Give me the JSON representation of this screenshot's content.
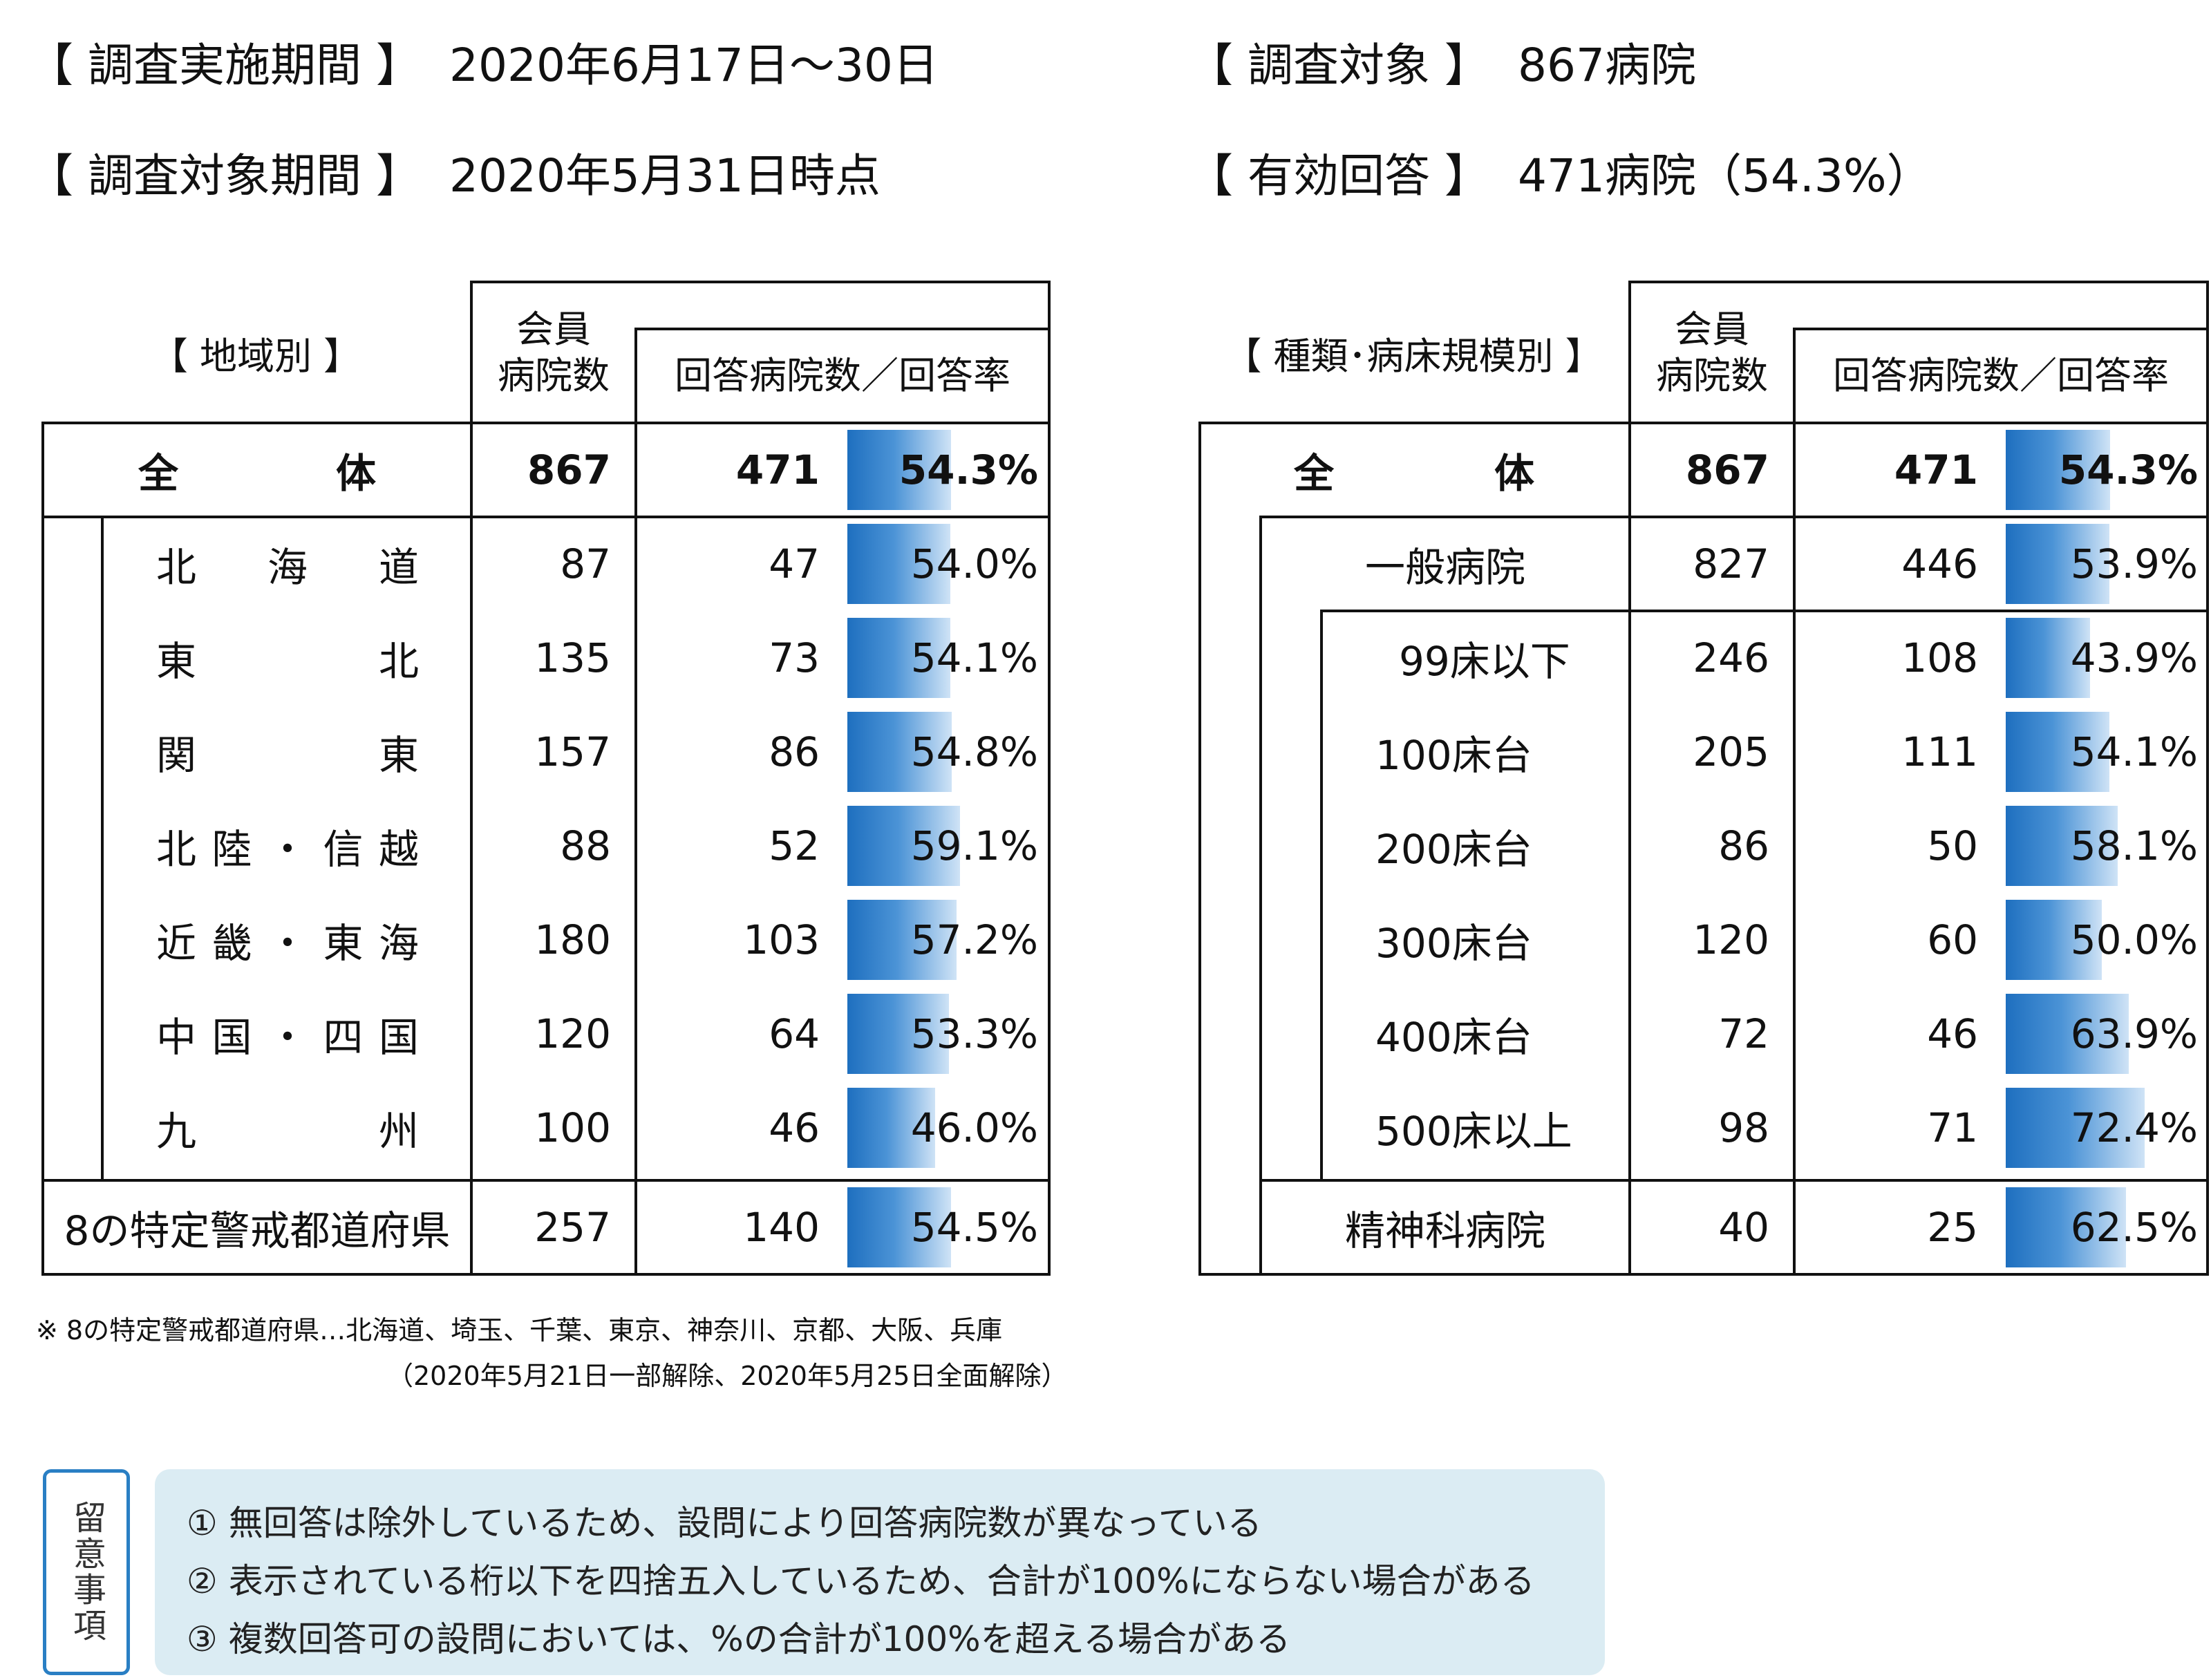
{
  "header": {
    "survey_period_label": "【 調査実施期間 】",
    "survey_period_value": "2020年6月17日～30日",
    "target_period_label": "【 調査対象期間 】",
    "target_period_value": "2020年5月31日時点",
    "target_label": "【 調査対象 】",
    "target_value": "867病院",
    "valid_label": "【 有効回答 】",
    "valid_value": "471病院（54.3%）"
  },
  "region_table": {
    "title": "【 地域別 】",
    "col_members": "会員\n病院数",
    "col_responses": "回答病院数／回答率",
    "total": {
      "label_a": "全",
      "label_b": "体",
      "members": "867",
      "responses": "471",
      "rate": "54.3%",
      "rate_value": 54.3
    },
    "rows": [
      {
        "chars": [
          "北",
          "海",
          "道"
        ],
        "members": "87",
        "responses": "47",
        "rate": "54.0%",
        "rate_value": 54.0
      },
      {
        "chars": [
          "東",
          "北"
        ],
        "members": "135",
        "responses": "73",
        "rate": "54.1%",
        "rate_value": 54.1
      },
      {
        "chars": [
          "関",
          "東"
        ],
        "members": "157",
        "responses": "86",
        "rate": "54.8%",
        "rate_value": 54.8
      },
      {
        "chars": [
          "北",
          "陸",
          "・",
          "信",
          "越"
        ],
        "members": "88",
        "responses": "52",
        "rate": "59.1%",
        "rate_value": 59.1
      },
      {
        "chars": [
          "近",
          "畿",
          "・",
          "東",
          "海"
        ],
        "members": "180",
        "responses": "103",
        "rate": "57.2%",
        "rate_value": 57.2
      },
      {
        "chars": [
          "中",
          "国",
          "・",
          "四",
          "国"
        ],
        "members": "120",
        "responses": "64",
        "rate": "53.3%",
        "rate_value": 53.3
      },
      {
        "chars": [
          "九",
          "州"
        ],
        "members": "100",
        "responses": "46",
        "rate": "46.0%",
        "rate_value": 46.0
      }
    ],
    "special": {
      "label": "8の特定警戒都道府県",
      "members": "257",
      "responses": "140",
      "rate": "54.5%",
      "rate_value": 54.5
    }
  },
  "type_table": {
    "title": "【 種類･病床規模別 】",
    "col_members": "会員\n病院数",
    "col_responses": "回答病院数／回答率",
    "total": {
      "label_a": "全",
      "label_b": "体",
      "members": "867",
      "responses": "471",
      "rate": "54.3%",
      "rate_value": 54.3
    },
    "general": {
      "label": "一般病院",
      "members": "827",
      "responses": "446",
      "rate": "53.9%",
      "rate_value": 53.9
    },
    "rows": [
      {
        "label": "99床以下",
        "members": "246",
        "responses": "108",
        "rate": "43.9%",
        "rate_value": 43.9
      },
      {
        "label": "100床台",
        "members": "205",
        "responses": "111",
        "rate": "54.1%",
        "rate_value": 54.1
      },
      {
        "label": "200床台",
        "members": "86",
        "responses": "50",
        "rate": "58.1%",
        "rate_value": 58.1
      },
      {
        "label": "300床台",
        "members": "120",
        "responses": "60",
        "rate": "50.0%",
        "rate_value": 50.0
      },
      {
        "label": "400床台",
        "members": "72",
        "responses": "46",
        "rate": "63.9%",
        "rate_value": 63.9
      },
      {
        "label": "500床以上",
        "members": "98",
        "responses": "71",
        "rate": "72.4%",
        "rate_value": 72.4
      }
    ],
    "psych": {
      "label": "精神科病院",
      "members": "40",
      "responses": "25",
      "rate": "62.5%",
      "rate_value": 62.5
    }
  },
  "footnote": {
    "line1": "※ 8の特定警戒都道府県…北海道、埼玉、千葉、東京、神奈川、京都、大阪、兵庫",
    "line2": "（2020年5月21日一部解除、2020年5月25日全面解除）"
  },
  "notes": {
    "tag": "留意事項",
    "items": [
      "① 無回答は除外しているため、設問により回答病院数が異なっている",
      "② 表示されている桁以下を四捨五入しているため、合計が100%にならない場合がある",
      "③ 複数回答可の設問においては、%の合計が100%を超える場合がある"
    ]
  },
  "colors": {
    "bar_start": "#1e6fbf",
    "bar_end": "#cfe3f6",
    "note_bg": "#dbecf3",
    "tag_border": "#2a7fc4"
  }
}
